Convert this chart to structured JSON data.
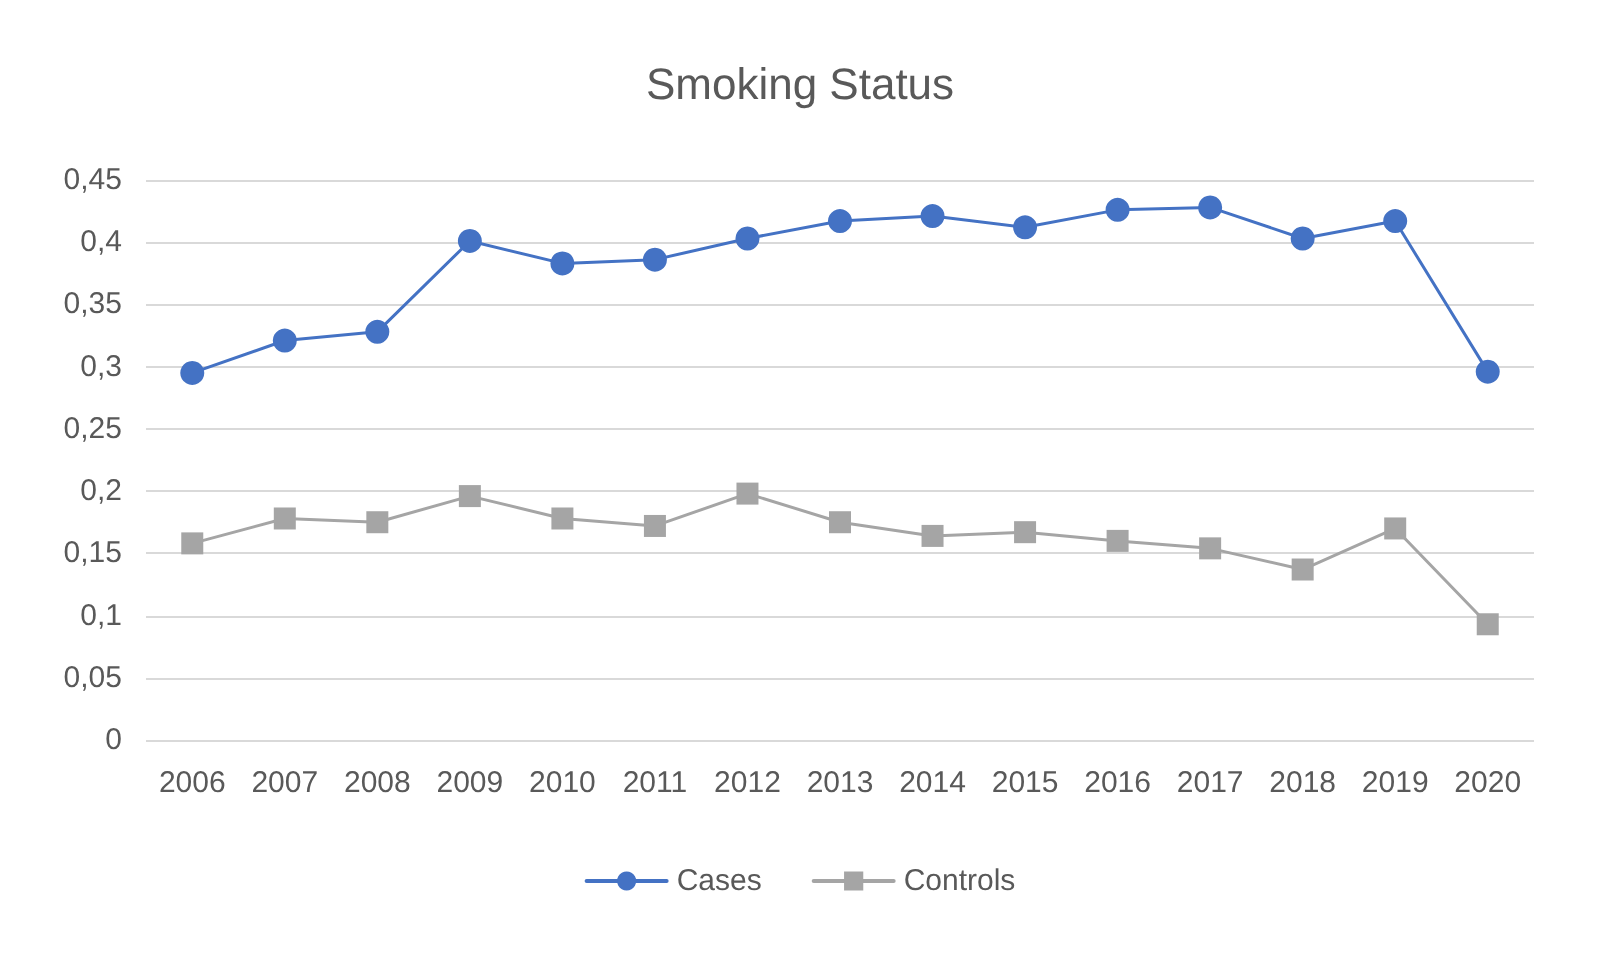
{
  "chart_data": {
    "type": "line",
    "title": "Smoking Status",
    "categories": [
      "2006",
      "2007",
      "2008",
      "2009",
      "2010",
      "2011",
      "2012",
      "2013",
      "2014",
      "2015",
      "2016",
      "2017",
      "2018",
      "2019",
      "2020"
    ],
    "series": [
      {
        "name": "Cases",
        "color": "#4472c4",
        "marker": "circle",
        "values": [
          0.295,
          0.321,
          0.328,
          0.401,
          0.383,
          0.386,
          0.403,
          0.417,
          0.421,
          0.412,
          0.426,
          0.428,
          0.403,
          0.417,
          0.296
        ]
      },
      {
        "name": "Controls",
        "color": "#a5a5a5",
        "marker": "square",
        "values": [
          0.158,
          0.178,
          0.175,
          0.196,
          0.178,
          0.172,
          0.198,
          0.175,
          0.164,
          0.167,
          0.16,
          0.154,
          0.137,
          0.17,
          0.093
        ]
      }
    ],
    "ylim": [
      0,
      0.45
    ],
    "yticks": [
      0,
      {
        "value": 0.05,
        "label": "0,05"
      },
      {
        "value": 0.1,
        "label": "0,1"
      },
      {
        "value": 0.15,
        "label": "0,15"
      },
      {
        "value": 0.2,
        "label": "0,2"
      },
      {
        "value": 0.25,
        "label": "0,25"
      },
      {
        "value": 0.3,
        "label": "0,3"
      },
      {
        "value": 0.35,
        "label": "0,35"
      },
      {
        "value": 0.4,
        "label": "0,4"
      },
      {
        "value": 0.45,
        "label": "0,45"
      }
    ],
    "grid": "y",
    "legend": "bottom",
    "line_style": "solid"
  }
}
